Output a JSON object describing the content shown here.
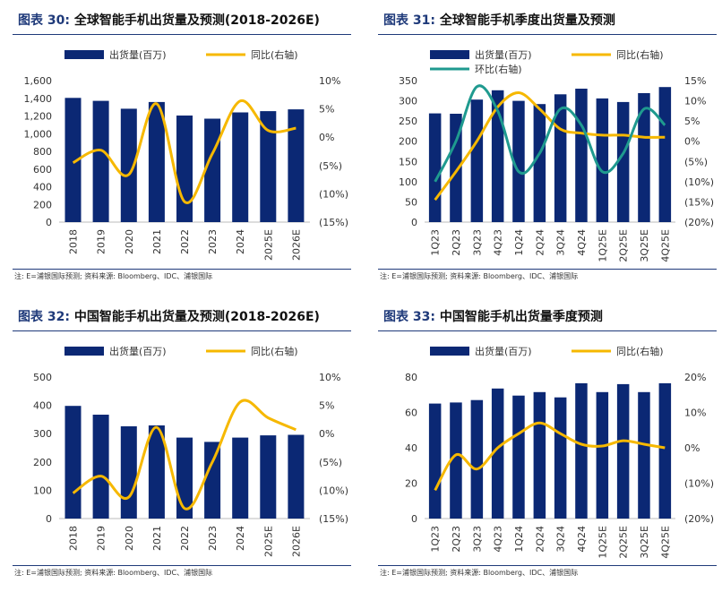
{
  "colors": {
    "bar": "#0b2874",
    "line": "#f6b800",
    "line2": "#1f9a8f",
    "rule": "#1f3a7a"
  },
  "panels": [
    {
      "fig": "图表 30:",
      "title": "全球智能手机出货量及预测(2018-2026E)",
      "note": "注: E=浦银国际预测; 资料来源: Bloomberg、IDC、浦银国际",
      "chart_data": {
        "type": "bar",
        "legend": [
          {
            "kind": "bar",
            "label": "出货量(百万)"
          },
          {
            "kind": "line",
            "label": "同比(右轴)"
          }
        ],
        "categories": [
          "2018",
          "2019",
          "2020",
          "2021",
          "2022",
          "2023",
          "2024",
          "2025E",
          "2026E"
        ],
        "bars": [
          1405,
          1371,
          1282,
          1358,
          1205,
          1170,
          1240,
          1255,
          1275
        ],
        "lines": [
          [
            -4.5,
            -2.3,
            -6.6,
            5.9,
            -11.4,
            -2.9,
            6.4,
            1.2,
            1.6
          ]
        ],
        "ylim": [
          0,
          1600
        ],
        "yticks": [
          0,
          200,
          400,
          600,
          800,
          1000,
          1200,
          1400,
          1600
        ],
        "ytick_labels": [
          "0",
          "200",
          "400",
          "600",
          "800",
          "1,000",
          "1,200",
          "1,400",
          "1,600"
        ],
        "y2lim": [
          -15,
          10
        ],
        "y2ticks": [
          -15,
          -10,
          -5,
          0,
          5,
          10
        ],
        "y2tick_labels": [
          "(15%)",
          "(10%)",
          "(5%)",
          "0%",
          "5%",
          "10%"
        ]
      }
    },
    {
      "fig": "图表 31:",
      "title": "全球智能手机季度出货量及预测",
      "note": "注: E=浦银国际预测; 资料来源: Bloomberg、IDC、浦银国际",
      "chart_data": {
        "type": "bar",
        "legend": [
          {
            "kind": "bar",
            "label": "出货量(百万)"
          },
          {
            "kind": "line",
            "label": "同比(右轴)"
          },
          {
            "kind": "line2",
            "label": "环比(右轴)"
          }
        ],
        "categories": [
          "1Q23",
          "2Q23",
          "3Q23",
          "4Q23",
          "1Q24",
          "2Q24",
          "3Q24",
          "4Q24",
          "1Q25E",
          "2Q25E",
          "3Q25E",
          "4Q25E"
        ],
        "bars": [
          269,
          268,
          303,
          326,
          300,
          292,
          316,
          330,
          306,
          297,
          319,
          334
        ],
        "lines": [
          [
            -14.5,
            -7.5,
            0,
            8.5,
            12,
            8,
            3,
            2,
            1.5,
            1.5,
            1,
            1
          ],
          [
            -10,
            0,
            13.5,
            7.5,
            -7.5,
            -3,
            8,
            4,
            -7.5,
            -3,
            8,
            4
          ]
        ],
        "ylim": [
          0,
          350
        ],
        "yticks": [
          0,
          50,
          100,
          150,
          200,
          250,
          300,
          350
        ],
        "ytick_labels": [
          "0",
          "50",
          "100",
          "150",
          "200",
          "250",
          "300",
          "350"
        ],
        "y2lim": [
          -20,
          15
        ],
        "y2ticks": [
          -20,
          -15,
          -10,
          -5,
          0,
          5,
          10,
          15
        ],
        "y2tick_labels": [
          "(20%)",
          "(15%)",
          "(10%)",
          "(5%)",
          "0%",
          "5%",
          "10%",
          "15%"
        ]
      }
    },
    {
      "fig": "图表 32:",
      "title": "中国智能手机出货量及预测(2018-2026E)",
      "note": "注: E=浦银国际预测; 资料来源: Bloomberg、IDC、浦银国际",
      "chart_data": {
        "type": "bar",
        "legend": [
          {
            "kind": "bar",
            "label": "出货量(百万)"
          },
          {
            "kind": "line",
            "label": "同比(右轴)"
          }
        ],
        "categories": [
          "2018",
          "2019",
          "2020",
          "2021",
          "2022",
          "2023",
          "2024",
          "2025E",
          "2026E"
        ],
        "bars": [
          398,
          367,
          326,
          329,
          286,
          271,
          286,
          294,
          296
        ],
        "lines": [
          [
            -10.5,
            -7.5,
            -11.2,
            1.1,
            -13.2,
            -5,
            5.6,
            2.8,
            0.7
          ]
        ],
        "ylim": [
          0,
          500
        ],
        "yticks": [
          0,
          100,
          200,
          300,
          400,
          500
        ],
        "ytick_labels": [
          "0",
          "100",
          "200",
          "300",
          "400",
          "500"
        ],
        "y2lim": [
          -15,
          10
        ],
        "y2ticks": [
          -15,
          -10,
          -5,
          0,
          5,
          10
        ],
        "y2tick_labels": [
          "(15%)",
          "(10%)",
          "(5%)",
          "0%",
          "5%",
          "10%"
        ]
      }
    },
    {
      "fig": "图表 33:",
      "title": "中国智能手机出货量季度预测",
      "note": "注: E=浦银国际预测; 资料来源: Bloomberg、IDC、浦银国际",
      "chart_data": {
        "type": "bar",
        "legend": [
          {
            "kind": "bar",
            "label": "出货量(百万)"
          },
          {
            "kind": "line",
            "label": "同比(右轴)"
          }
        ],
        "categories": [
          "1Q23",
          "2Q23",
          "3Q23",
          "4Q23",
          "1Q24",
          "2Q24",
          "3Q24",
          "4Q24",
          "1Q25E",
          "2Q25E",
          "3Q25E",
          "4Q25E"
        ],
        "bars": [
          65,
          65.6,
          67,
          73.5,
          69.5,
          71.5,
          68.5,
          76.5,
          71.5,
          76,
          71.5,
          76.5
        ],
        "lines": [
          [
            -12,
            -2,
            -6,
            0,
            4,
            7,
            4,
            1,
            0.5,
            2,
            1,
            0
          ]
        ],
        "ylim": [
          0,
          80
        ],
        "yticks": [
          0,
          20,
          40,
          60,
          80
        ],
        "ytick_labels": [
          "0",
          "20",
          "40",
          "60",
          "80"
        ],
        "y2lim": [
          -20,
          20
        ],
        "y2ticks": [
          -20,
          -10,
          0,
          10,
          20
        ],
        "y2tick_labels": [
          "(20%)",
          "(10%)",
          "0%",
          "10%",
          "20%"
        ]
      }
    }
  ]
}
